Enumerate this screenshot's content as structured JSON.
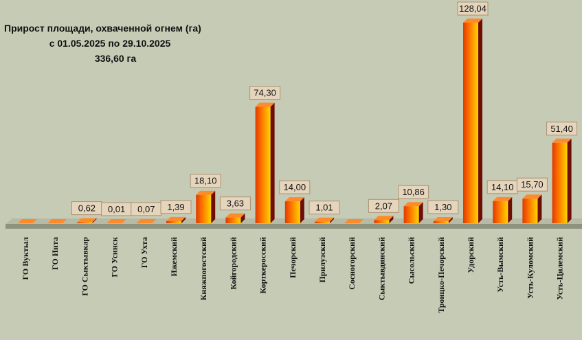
{
  "chart_data": {
    "type": "bar3d",
    "title": "Прирост площади, охваченной огнем (га)",
    "subtitle": "с 01.05.2025  по  29.10.2025",
    "annotation": "336,60 га",
    "categories": [
      "ГО Вуктыл",
      "ГО Инта",
      "ГО Сыктывкар",
      "ГО Усинск",
      "ГО Ухта",
      "Ижемский",
      "Княжпогостский",
      "Койгородский",
      "Корткеросский",
      "Печорский",
      "Прилузский",
      "Сосногорский",
      "Сыктывдинский",
      "Сысольский",
      "Троицко-Печорский",
      "Удорский",
      "Усть-Вымский",
      "Усть-Куломский",
      "Усть-Цилемский"
    ],
    "values": [
      0,
      0,
      0.62,
      0.01,
      0.07,
      1.39,
      18.1,
      3.63,
      74.3,
      14.0,
      1.01,
      0,
      2.07,
      10.86,
      1.3,
      128.04,
      14.1,
      15.7,
      51.4
    ],
    "value_labels": [
      null,
      null,
      "0,62",
      "0,01",
      "0,07",
      "1,39",
      "18,10",
      "3,63",
      "74,30",
      "14,00",
      "1,01",
      null,
      "2,07",
      "10,86",
      "1,30",
      "128,04",
      "14,10",
      "15,70",
      "51,40"
    ]
  }
}
